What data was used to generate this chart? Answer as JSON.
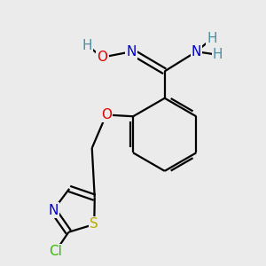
{
  "background_color": "#ebebeb",
  "bond_color": "#000000",
  "bond_width": 1.6,
  "atom_colors": {
    "C": "#000000",
    "N": "#0000cc",
    "O": "#dd0000",
    "S": "#bbaa00",
    "Cl": "#33bb00",
    "H": "#4a8fa0"
  },
  "font_size": 11
}
